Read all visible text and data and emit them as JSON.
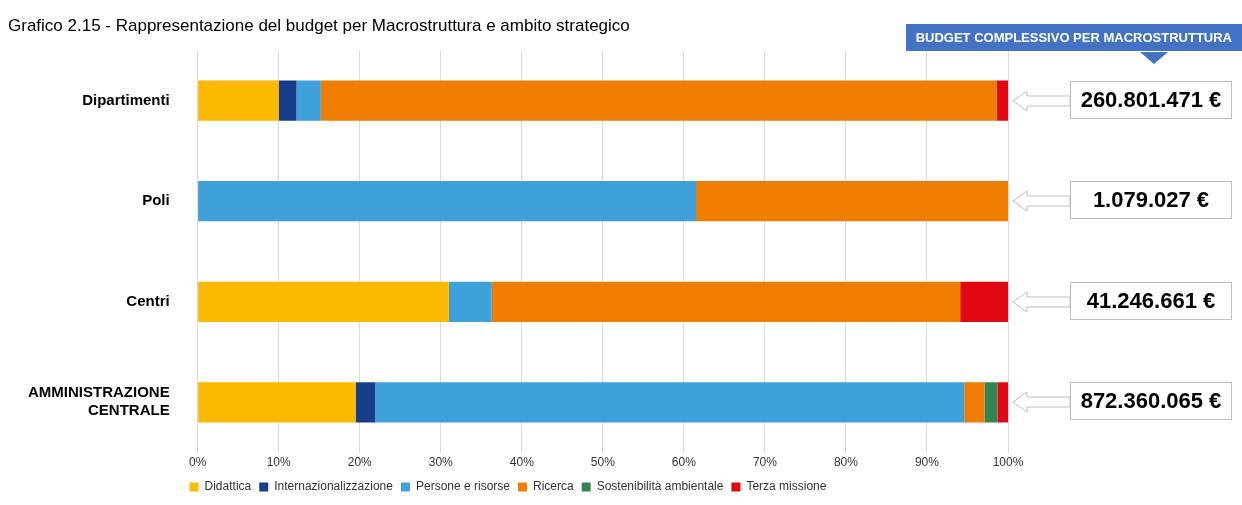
{
  "chart_data": {
    "type": "bar",
    "orientation": "horizontal",
    "stacked": true,
    "title": "Grafico 2.15 - Rappresentazione del budget per Macrostruttura e ambito strategico",
    "categories": [
      "Dipartimenti",
      "Poli",
      "Centri",
      "AMMINISTRAZIONE CENTRALE"
    ],
    "series": [
      {
        "name": "Didattica",
        "color": "#fbb900",
        "values": [
          10.0,
          0,
          31.0,
          19.5
        ]
      },
      {
        "name": "Internazionalizzazione",
        "color": "#173e8a",
        "values": [
          2.2,
          0,
          0,
          2.4
        ]
      },
      {
        "name": "Persone e risorse",
        "color": "#40a1da",
        "values": [
          3.0,
          61.5,
          5.3,
          72.7
        ]
      },
      {
        "name": "Ricerca",
        "color": "#ef7d00",
        "values": [
          83.4,
          38.5,
          57.8,
          2.5
        ]
      },
      {
        "name": "Sostenibilità ambientale",
        "color": "#358454",
        "values": [
          0,
          0,
          0,
          1.6
        ]
      },
      {
        "name": "Terza missione",
        "color": "#e30613",
        "values": [
          1.4,
          0,
          5.9,
          1.3
        ]
      }
    ],
    "xlim": [
      0,
      100
    ],
    "xticks": [
      {
        "value": 0,
        "label": "0%"
      },
      {
        "value": 10,
        "label": "10%"
      },
      {
        "value": 20,
        "label": "20%"
      },
      {
        "value": 30,
        "label": "30%"
      },
      {
        "value": 40,
        "label": "40%"
      },
      {
        "value": 50,
        "label": "50%"
      },
      {
        "value": 60,
        "label": "60%"
      },
      {
        "value": 70,
        "label": "70%"
      },
      {
        "value": 80,
        "label": "80%"
      },
      {
        "value": 90,
        "label": "90%"
      },
      {
        "value": 100,
        "label": "100%"
      }
    ],
    "grid": "x",
    "legend": "bottom",
    "annotations": [
      "BUDGET COMPLESSIVO PER MACROSTRUTTURA",
      "260.801.471 €",
      "1.079.027 €",
      "41.246.661 €",
      "872.360.065 €"
    ]
  }
}
